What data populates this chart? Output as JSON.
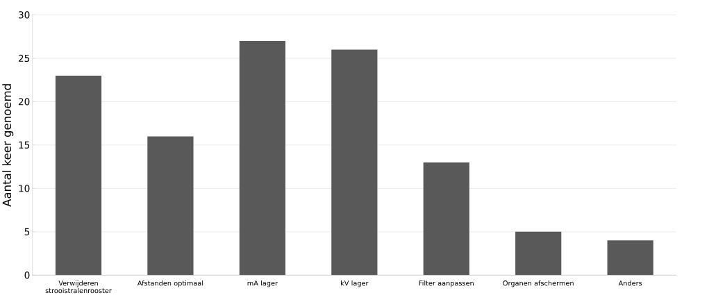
{
  "chart_data": {
    "type": "bar",
    "ylabel": "Aantal keer genoemd",
    "categories": [
      "Verwijderen strooistralenrooster",
      "Afstanden optimaal",
      "mA lager",
      "kV lager",
      "Filter aanpassen",
      "Organen afschermen",
      "Anders"
    ],
    "values": [
      23,
      16,
      27,
      26,
      13,
      5,
      4
    ],
    "color": "#595959",
    "ylim": [
      0,
      30
    ],
    "yticks": [
      0,
      5,
      10,
      15,
      20,
      25,
      30
    ],
    "grid": "y"
  }
}
